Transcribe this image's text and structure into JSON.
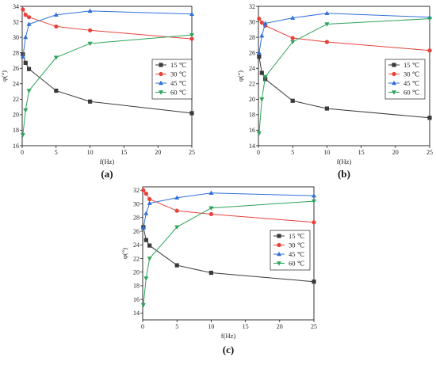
{
  "chart_data": [
    {
      "type": "line",
      "panel_label": "(a)",
      "xlabel": "f(Hz)",
      "ylabel": "φ(°)",
      "xlim": [
        0,
        25
      ],
      "ylim": [
        16,
        34
      ],
      "xticks": [
        0,
        5,
        10,
        15,
        20,
        25
      ],
      "yticks": [
        16,
        18,
        20,
        22,
        24,
        26,
        28,
        30,
        32,
        34
      ],
      "x": [
        0.1,
        0.5,
        1,
        5,
        10,
        25
      ],
      "legend_position": "right",
      "series": [
        {
          "name": "15 ℃",
          "color": "#3a3a3a",
          "marker": "square",
          "values": [
            27.8,
            26.7,
            25.9,
            23.1,
            21.7,
            20.2
          ]
        },
        {
          "name": "30 ℃",
          "color": "#e8413a",
          "marker": "circle",
          "values": [
            33.6,
            32.9,
            32.6,
            31.4,
            30.9,
            29.8
          ]
        },
        {
          "name": "45 ℃",
          "color": "#2f6fdc",
          "marker": "triangle-up",
          "values": [
            27.5,
            30.0,
            31.7,
            32.9,
            33.4,
            33.0
          ]
        },
        {
          "name": "60 ℃",
          "color": "#2ca35a",
          "marker": "triangle-down",
          "values": [
            17.4,
            20.6,
            23.1,
            27.4,
            29.2,
            30.3
          ]
        }
      ]
    },
    {
      "type": "line",
      "panel_label": "(b)",
      "xlabel": "f(Hz)",
      "ylabel": "φ(°)",
      "xlim": [
        0,
        25
      ],
      "ylim": [
        14,
        32
      ],
      "xticks": [
        0,
        5,
        10,
        15,
        20,
        25
      ],
      "yticks": [
        14,
        16,
        18,
        20,
        22,
        24,
        26,
        28,
        30,
        32
      ],
      "x": [
        0.1,
        0.5,
        1,
        5,
        10,
        25
      ],
      "legend_position": "right",
      "series": [
        {
          "name": "15 ℃",
          "color": "#3a3a3a",
          "marker": "square",
          "values": [
            25.5,
            23.4,
            22.6,
            19.8,
            18.8,
            17.6
          ]
        },
        {
          "name": "30 ℃",
          "color": "#e8413a",
          "marker": "circle",
          "values": [
            30.4,
            29.9,
            29.5,
            27.9,
            27.4,
            26.3
          ]
        },
        {
          "name": "45 ℃",
          "color": "#2f6fdc",
          "marker": "triangle-up",
          "values": [
            26.0,
            28.2,
            29.8,
            30.5,
            31.1,
            30.6
          ]
        },
        {
          "name": "60 ℃",
          "color": "#2ca35a",
          "marker": "triangle-down",
          "values": [
            15.6,
            20.0,
            22.9,
            27.4,
            29.7,
            30.4
          ]
        }
      ]
    },
    {
      "type": "line",
      "panel_label": "(c)",
      "xlabel": "f(Hz)",
      "ylabel": "φ(°)",
      "xlim": [
        0,
        25
      ],
      "ylim": [
        13,
        32.5
      ],
      "xticks": [
        0,
        5,
        10,
        15,
        20,
        25
      ],
      "yticks": [
        14,
        16,
        18,
        20,
        22,
        24,
        26,
        28,
        30,
        32
      ],
      "x": [
        0.1,
        0.5,
        1,
        5,
        10,
        25
      ],
      "legend_position": "right",
      "series": [
        {
          "name": "15 ℃",
          "color": "#3a3a3a",
          "marker": "square",
          "values": [
            26.6,
            24.7,
            23.9,
            21.0,
            19.9,
            18.6
          ]
        },
        {
          "name": "30 ℃",
          "color": "#e8413a",
          "marker": "circle",
          "values": [
            32.0,
            31.5,
            30.7,
            29.0,
            28.5,
            27.3
          ]
        },
        {
          "name": "45 ℃",
          "color": "#2f6fdc",
          "marker": "triangle-up",
          "values": [
            26.5,
            28.6,
            30.1,
            30.9,
            31.6,
            31.2
          ]
        },
        {
          "name": "60 ℃",
          "color": "#2ca35a",
          "marker": "triangle-down",
          "values": [
            15.2,
            19.1,
            22.0,
            26.6,
            29.4,
            30.4
          ]
        }
      ]
    }
  ]
}
